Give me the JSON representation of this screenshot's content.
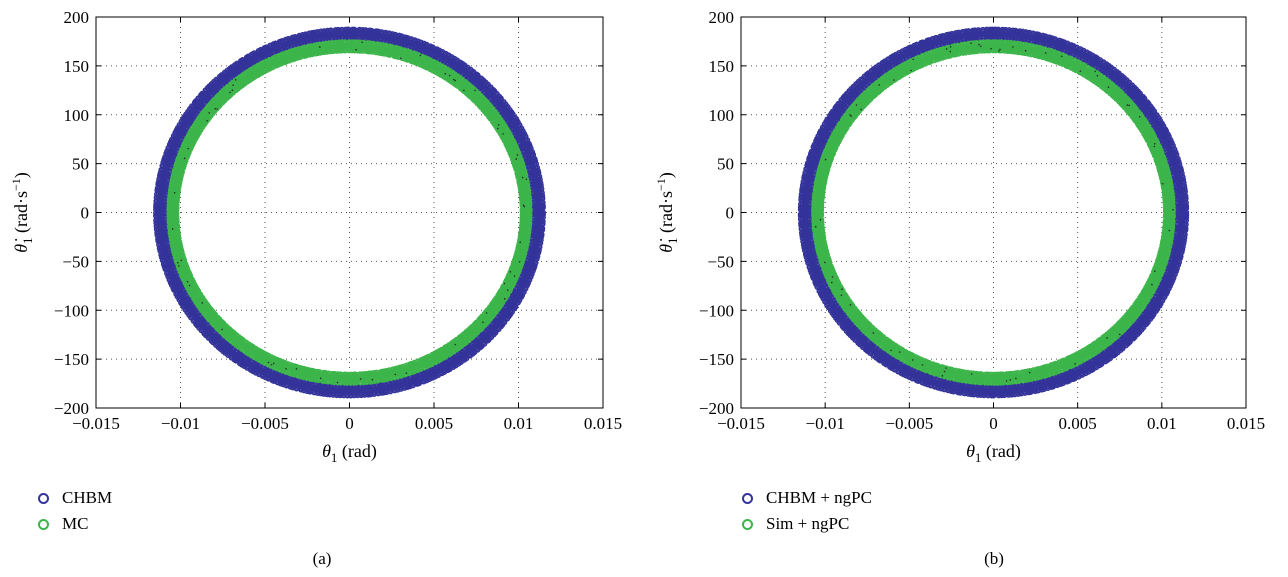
{
  "chart_data": [
    {
      "type": "scatter",
      "panel_label": "(a)",
      "xlabel_symbol": "θ",
      "xlabel_sub": "1",
      "xlabel_unit": " (rad)",
      "ylabel_symbol": "θ̇",
      "ylabel_sub": "1",
      "ylabel_unit_pre": " (rad·s",
      "ylabel_unit_sup": "−1",
      "ylabel_unit_post": ")",
      "xlim": [
        -0.015,
        0.015
      ],
      "ylim": [
        -200,
        200
      ],
      "xticks": [
        -0.015,
        -0.01,
        -0.005,
        0,
        0.005,
        0.01,
        0.015
      ],
      "xtick_labels": [
        "−0.015",
        "−0.01",
        "−0.005",
        "0",
        "0.005",
        "0.01",
        "0.015"
      ],
      "yticks": [
        -200,
        -150,
        -100,
        -50,
        0,
        50,
        100,
        150,
        200
      ],
      "ytick_labels": [
        "−200",
        "−150",
        "−100",
        "−50",
        "0",
        "50",
        "100",
        "150",
        "200"
      ],
      "grid": "dotted",
      "legend_position": "below",
      "series": [
        {
          "name": "CHBM",
          "color": "#33339a",
          "shape": "ring",
          "x_radius_range": [
            0.0109,
            0.0115
          ],
          "y_radius_range": [
            178,
            188
          ]
        },
        {
          "name": "MC",
          "color": "#3cb54a",
          "shape": "ring",
          "x_radius_range": [
            0.0102,
            0.0107
          ],
          "y_radius_range": [
            165,
            175
          ]
        }
      ]
    },
    {
      "type": "scatter",
      "panel_label": "(b)",
      "xlabel_symbol": "θ",
      "xlabel_sub": "1",
      "xlabel_unit": " (rad)",
      "ylabel_symbol": "θ̇",
      "ylabel_sub": "1",
      "ylabel_unit_pre": " (rad·s",
      "ylabel_unit_sup": "−1",
      "ylabel_unit_post": ")",
      "xlim": [
        -0.015,
        0.015
      ],
      "ylim": [
        -200,
        200
      ],
      "xticks": [
        -0.015,
        -0.01,
        -0.005,
        0,
        0.005,
        0.01,
        0.015
      ],
      "xtick_labels": [
        "−0.015",
        "−0.01",
        "−0.005",
        "0",
        "0.005",
        "0.01",
        "0.015"
      ],
      "yticks": [
        -200,
        -150,
        -100,
        -50,
        0,
        50,
        100,
        150,
        200
      ],
      "ytick_labels": [
        "−200",
        "−150",
        "−100",
        "−50",
        "0",
        "50",
        "100",
        "150",
        "200"
      ],
      "grid": "dotted",
      "legend_position": "below",
      "series": [
        {
          "name": "CHBM + ngPC",
          "color": "#33339a",
          "shape": "ring",
          "x_radius_range": [
            0.0109,
            0.0115
          ],
          "y_radius_range": [
            178,
            188
          ]
        },
        {
          "name": "Sim + ngPC",
          "color": "#3cb54a",
          "shape": "ring",
          "x_radius_range": [
            0.0102,
            0.0107
          ],
          "y_radius_range": [
            165,
            175
          ]
        }
      ]
    }
  ]
}
